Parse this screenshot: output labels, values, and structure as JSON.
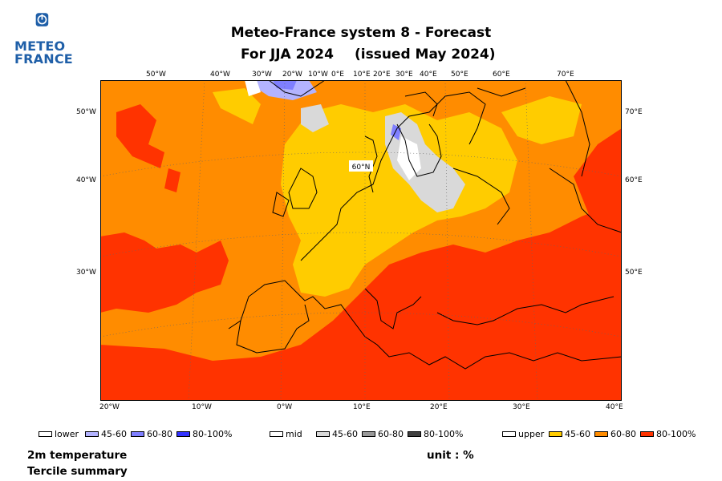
{
  "logo": {
    "line1": "METEO",
    "line2": "FRANCE"
  },
  "title": {
    "line1": "Meteo-France system 8  -  Forecast",
    "line2a": "For JJA 2024",
    "line2b": "(issued May 2024)"
  },
  "map": {
    "variable_colors": {
      "ocean_upper_60_80": "#ff8c00",
      "upper_80_100": "#ff3300",
      "upper_45_60": "#ffcc00",
      "mid_45_60": "#d9d9d9",
      "lower_45_60": "#b3b3ff",
      "lower_60_80": "#7f7fff"
    },
    "top_labels": [
      "50°W",
      "40°W",
      "30°W",
      "20°W",
      "10°W",
      "0°E",
      "10°E",
      "20°E",
      "30°E",
      "40°E",
      "50°E",
      "60°E",
      "70°E"
    ],
    "bottom_labels": [
      "20°W",
      "10°W",
      "0°W",
      "10°E",
      "20°E",
      "30°E",
      "40°E"
    ],
    "left_labels": [
      "50°W",
      "40°W",
      "30°W"
    ],
    "right_labels": [
      "70°E",
      "60°E",
      "50°E"
    ],
    "inner_label": "60°N"
  },
  "legend": {
    "lower": {
      "label": "lower",
      "items": [
        {
          "label": "45-60",
          "color": "#b3b3ff"
        },
        {
          "label": "60-80",
          "color": "#7f7fff"
        },
        {
          "label": "80-100%",
          "color": "#3333ff"
        }
      ]
    },
    "mid": {
      "label": "mid",
      "items": [
        {
          "label": "45-60",
          "color": "#d9d9d9"
        },
        {
          "label": "60-80",
          "color": "#999999"
        },
        {
          "label": "80-100%",
          "color": "#404040"
        }
      ]
    },
    "upper": {
      "label": "upper",
      "items": [
        {
          "label": "45-60",
          "color": "#ffcc00"
        },
        {
          "label": "60-80",
          "color": "#ff8c00"
        },
        {
          "label": "80-100%",
          "color": "#ff3300"
        }
      ]
    }
  },
  "footer": {
    "line1": "2m temperature",
    "line2": "Tercile summary",
    "unit": "unit : %"
  }
}
